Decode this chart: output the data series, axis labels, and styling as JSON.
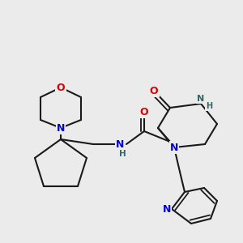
{
  "bg_color": "#ebebeb",
  "bond_color": "#1a1a1a",
  "N_color": "#0000dd",
  "O_color": "#dd0000",
  "NH_color": "#336666",
  "line_width": 1.5,
  "font_size": 8.0,
  "figsize": [
    3.0,
    3.0
  ],
  "dpi": 100,
  "xlim": [
    0,
    300
  ],
  "ylim": [
    0,
    300
  ]
}
